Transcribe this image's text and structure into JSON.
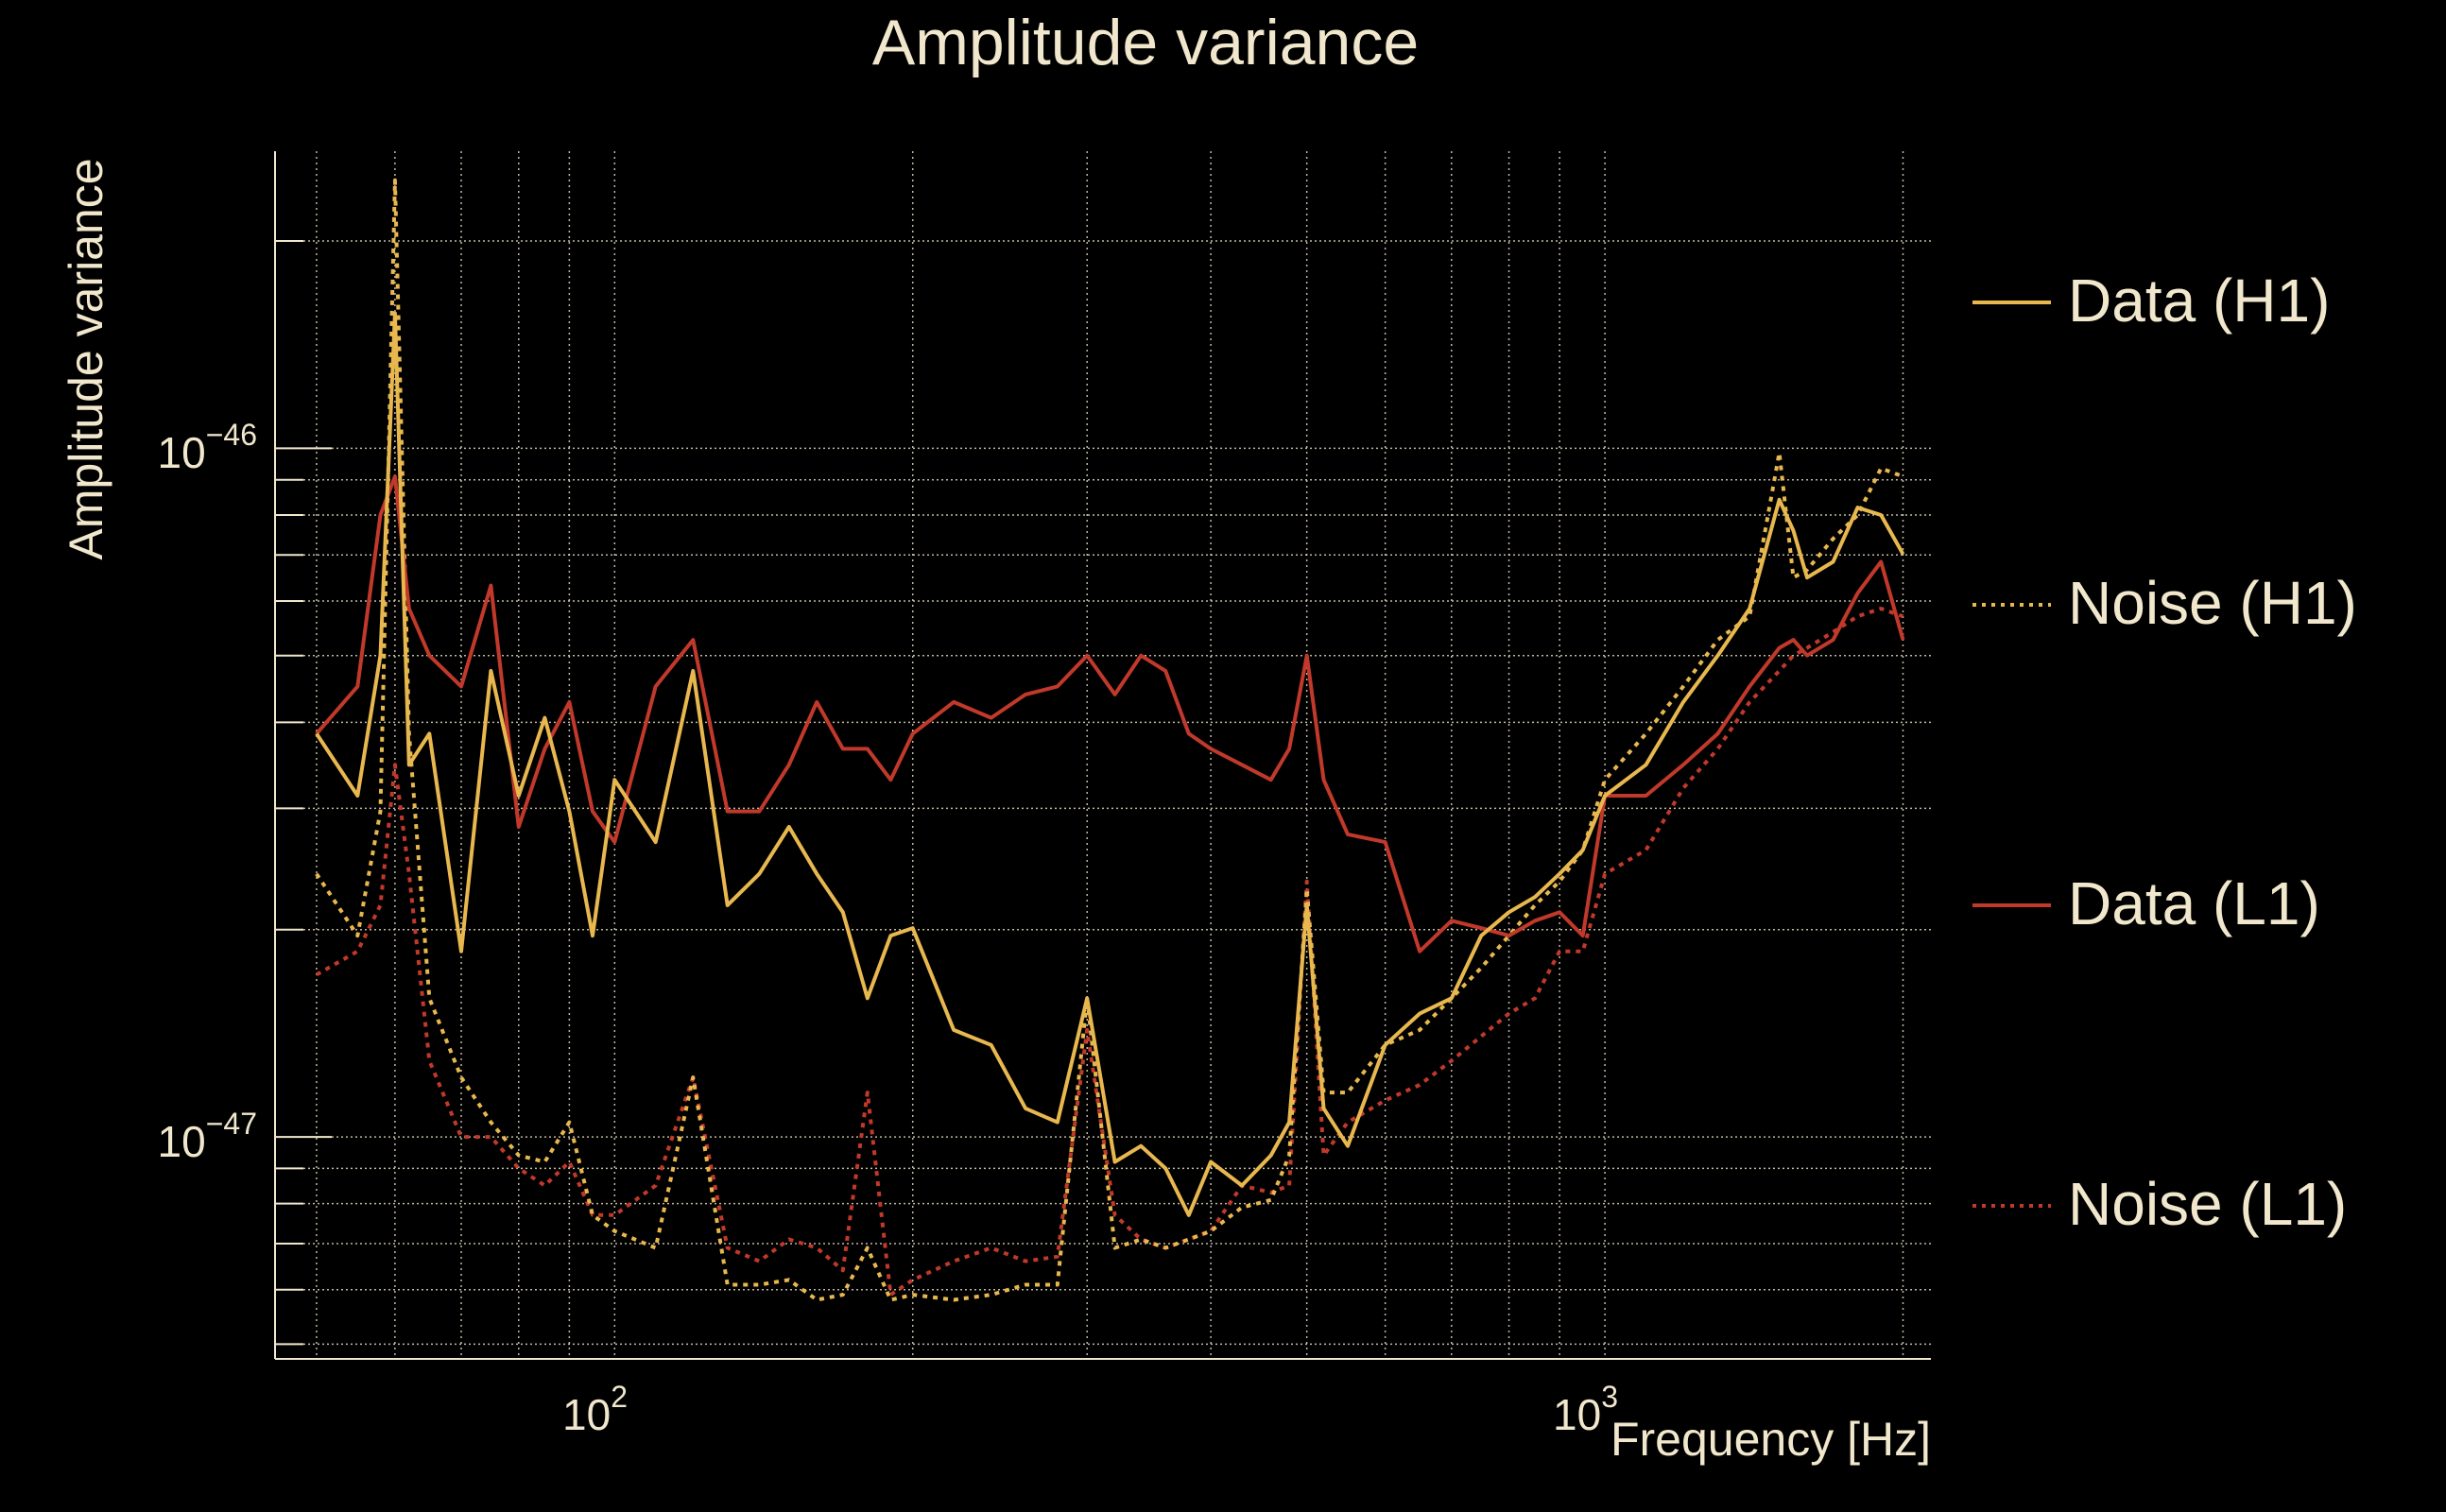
{
  "chart_data": {
    "type": "line",
    "title": "Amplitude variance",
    "xlabel": "Frequency [Hz]",
    "ylabel": "Amplitude variance",
    "xscale": "log",
    "yscale": "log",
    "xlim": [
      45.4,
      2134
    ],
    "ylim": [
      4.76e-48,
      2.7e-46
    ],
    "grid": true,
    "legend_position": "right",
    "x_ticks": [
      {
        "base": "10",
        "exp": "2",
        "value": 100
      },
      {
        "base": "10",
        "exp": "3",
        "value": 1000
      }
    ],
    "y_ticks": [
      {
        "base": "10",
        "exp": "−46",
        "value": 1e-46
      },
      {
        "base": "10",
        "exp": "−47",
        "value": 1e-47
      }
    ],
    "x": [
      50,
      55,
      58,
      60,
      62,
      65,
      70,
      75,
      80,
      85,
      90,
      95,
      100,
      110,
      120,
      130,
      140,
      150,
      160,
      170,
      180,
      190,
      200,
      220,
      240,
      260,
      280,
      300,
      320,
      340,
      360,
      380,
      400,
      430,
      460,
      480,
      500,
      520,
      550,
      600,
      650,
      700,
      750,
      800,
      850,
      900,
      950,
      1000,
      1100,
      1200,
      1300,
      1400,
      1500,
      1550,
      1600,
      1700,
      1800,
      1900,
      2000
    ],
    "series": [
      {
        "name": "Data (H1)",
        "color": "#e8b84f",
        "style": "solid",
        "values": [
          3.85e-47,
          3.13e-47,
          5e-47,
          1.57e-46,
          3.47e-47,
          3.85e-47,
          1.86e-47,
          4.75e-47,
          3.13e-47,
          4.06e-47,
          2.97e-47,
          1.96e-47,
          3.3e-47,
          2.68e-47,
          4.75e-47,
          2.17e-47,
          2.41e-47,
          2.82e-47,
          2.41e-47,
          2.12e-47,
          1.59e-47,
          1.96e-47,
          2.01e-47,
          1.43e-47,
          1.36e-47,
          1.1e-47,
          1.05e-47,
          1.59e-47,
          9.2e-48,
          9.7e-48,
          9e-48,
          7.7e-48,
          9.2e-48,
          8.5e-48,
          9.4e-48,
          1.05e-47,
          2.17e-47,
          1.1e-47,
          9.7e-48,
          1.36e-47,
          1.51e-47,
          1.59e-47,
          1.96e-47,
          2.12e-47,
          2.23e-47,
          2.41e-47,
          2.61e-47,
          3.13e-47,
          3.47e-47,
          4.28e-47,
          5e-47,
          5.85e-47,
          8.42e-47,
          7.59e-47,
          6.49e-47,
          6.84e-47,
          8.2e-47,
          8e-47,
          7.02e-47
        ]
      },
      {
        "name": "Noise (H1)",
        "color": "#e8b84f",
        "style": "dotted",
        "values": [
          2.41e-47,
          1.96e-47,
          2.97e-47,
          2.45e-46,
          3.85e-47,
          1.59e-47,
          1.22e-47,
          1.05e-47,
          9.4e-48,
          9.2e-48,
          1.05e-47,
          7.7e-48,
          7.3e-48,
          6.9e-48,
          1.22e-47,
          6.1e-48,
          6.1e-48,
          6.2e-48,
          5.8e-48,
          5.9e-48,
          6.9e-48,
          5.8e-48,
          5.9e-48,
          5.8e-48,
          5.9e-48,
          6.1e-48,
          6.1e-48,
          1.59e-47,
          6.9e-48,
          7.1e-48,
          6.9e-48,
          7.1e-48,
          7.3e-48,
          7.9e-48,
          8.1e-48,
          9.4e-48,
          2.29e-47,
          1.16e-47,
          1.16e-47,
          1.36e-47,
          1.43e-47,
          1.59e-47,
          1.76e-47,
          1.96e-47,
          2.17e-47,
          2.35e-47,
          2.61e-47,
          3.3e-47,
          3.85e-47,
          4.51e-47,
          5.27e-47,
          5.7e-47,
          9.85e-47,
          6.49e-47,
          6.66e-47,
          7.39e-47,
          8e-47,
          9.35e-47,
          9.1e-47
        ]
      },
      {
        "name": "Data (L1)",
        "color": "#c0392b",
        "style": "solid",
        "values": [
          3.85e-47,
          4.51e-47,
          8e-47,
          9.1e-47,
          5.85e-47,
          5e-47,
          4.51e-47,
          6.32e-47,
          2.82e-47,
          3.66e-47,
          4.28e-47,
          2.97e-47,
          2.68e-47,
          4.51e-47,
          5.27e-47,
          2.97e-47,
          2.97e-47,
          3.47e-47,
          4.28e-47,
          3.66e-47,
          3.66e-47,
          3.3e-47,
          3.85e-47,
          4.28e-47,
          4.06e-47,
          4.39e-47,
          4.51e-47,
          5e-47,
          4.39e-47,
          5e-47,
          4.75e-47,
          3.85e-47,
          3.66e-47,
          3.47e-47,
          3.3e-47,
          3.66e-47,
          5e-47,
          3.3e-47,
          2.75e-47,
          2.68e-47,
          1.86e-47,
          2.06e-47,
          2.01e-47,
          1.96e-47,
          2.06e-47,
          2.12e-47,
          1.96e-47,
          3.13e-47,
          3.13e-47,
          3.47e-47,
          3.85e-47,
          4.51e-47,
          5.13e-47,
          5.27e-47,
          5e-47,
          5.27e-47,
          6.16e-47,
          6.84e-47,
          5.27e-47
        ]
      },
      {
        "name": "Noise (L1)",
        "color": "#c0392b",
        "style": "dotted",
        "values": [
          1.72e-47,
          1.86e-47,
          2.17e-47,
          3.47e-47,
          2.41e-47,
          1.29e-47,
          1e-47,
          1e-47,
          9e-48,
          8.5e-48,
          9.2e-48,
          7.7e-48,
          7.7e-48,
          8.5e-48,
          1.22e-47,
          6.9e-48,
          6.6e-48,
          7.1e-48,
          6.9e-48,
          6.4e-48,
          1.16e-47,
          5.9e-48,
          6.2e-48,
          6.6e-48,
          6.9e-48,
          6.6e-48,
          6.7e-48,
          1.43e-47,
          7.7e-48,
          7.1e-48,
          6.9e-48,
          7.1e-48,
          7.3e-48,
          8.5e-48,
          8.3e-48,
          8.5e-48,
          2.35e-47,
          9.4e-48,
          1.05e-47,
          1.13e-47,
          1.19e-47,
          1.29e-47,
          1.4e-47,
          1.51e-47,
          1.59e-47,
          1.86e-47,
          1.86e-47,
          2.41e-47,
          2.61e-47,
          3.21e-47,
          3.66e-47,
          4.28e-47,
          4.75e-47,
          5e-47,
          5.13e-47,
          5.41e-47,
          5.7e-47,
          5.85e-47,
          5.7e-47
        ]
      }
    ]
  },
  "colors": {
    "background": "#000000",
    "text": "#f1e7cc",
    "grid": "#f1e7cc",
    "h1": "#e8b84f",
    "l1": "#c0392b"
  }
}
